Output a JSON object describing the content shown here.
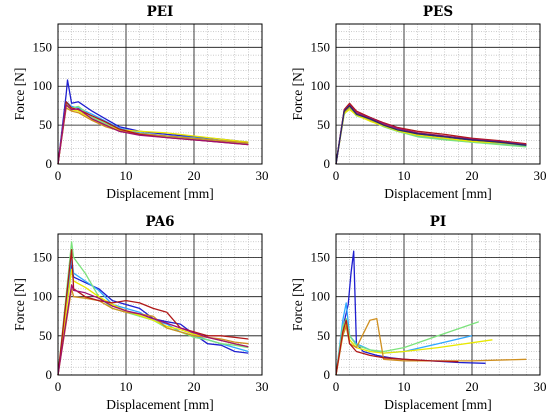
{
  "colors": [
    "#1f1fd0",
    "#2fa8ff",
    "#7ce37c",
    "#e8e800",
    "#d09020",
    "#b01818",
    "#a01070",
    "#2a2a6a"
  ],
  "chart_data": [
    {
      "type": "line",
      "title": "PEI",
      "xlabel": "Displacement [mm]",
      "ylabel": "Force [N]",
      "xlim": [
        0,
        30
      ],
      "ylim": [
        0,
        180
      ],
      "xticks": [
        "0",
        "10",
        "20",
        "30"
      ],
      "yticks": [
        "0",
        "50",
        "100",
        "150"
      ],
      "grid": true,
      "series": [
        {
          "x": [
            0,
            1.2,
            1.4,
            2,
            3,
            5,
            7,
            9,
            12,
            16,
            20,
            24,
            28
          ],
          "y": [
            0,
            90,
            108,
            78,
            80,
            68,
            58,
            48,
            42,
            38,
            35,
            32,
            28
          ]
        },
        {
          "x": [
            0,
            1.2,
            2,
            3,
            5,
            7,
            9,
            12,
            16,
            20,
            24,
            28
          ],
          "y": [
            0,
            80,
            74,
            72,
            64,
            55,
            46,
            40,
            36,
            34,
            30,
            27
          ]
        },
        {
          "x": [
            0,
            1.2,
            2,
            3,
            5,
            7,
            9,
            12,
            16,
            20,
            24,
            28
          ],
          "y": [
            0,
            78,
            72,
            74,
            60,
            52,
            44,
            38,
            35,
            32,
            29,
            26
          ]
        },
        {
          "x": [
            0,
            1.2,
            2,
            3,
            5,
            7,
            9,
            12,
            16,
            20,
            24,
            28
          ],
          "y": [
            0,
            75,
            70,
            68,
            58,
            50,
            44,
            42,
            40,
            36,
            32,
            28
          ]
        },
        {
          "x": [
            0,
            1.2,
            2,
            3,
            5,
            7,
            9,
            12,
            16,
            20,
            24,
            28
          ],
          "y": [
            0,
            72,
            68,
            66,
            56,
            48,
            43,
            39,
            36,
            33,
            30,
            27
          ]
        },
        {
          "x": [
            0,
            1.2,
            2,
            3,
            5,
            7,
            9,
            12,
            16,
            20,
            24,
            28
          ],
          "y": [
            0,
            80,
            72,
            70,
            62,
            54,
            45,
            38,
            34,
            31,
            28,
            25
          ]
        },
        {
          "x": [
            0,
            1.2,
            2,
            3,
            5,
            7,
            9,
            12,
            16,
            20,
            24,
            28
          ],
          "y": [
            0,
            76,
            70,
            71,
            58,
            50,
            42,
            37,
            34,
            31,
            28,
            25
          ]
        }
      ]
    },
    {
      "type": "line",
      "title": "PES",
      "xlabel": "Displacement [mm]",
      "ylabel": "Force [N]",
      "xlim": [
        0,
        30
      ],
      "ylim": [
        0,
        180
      ],
      "xticks": [
        "0",
        "10",
        "20",
        "30"
      ],
      "yticks": [
        "0",
        "50",
        "100",
        "150"
      ],
      "grid": true,
      "series": [
        {
          "x": [
            0,
            1.2,
            2,
            3,
            5,
            7,
            9,
            12,
            16,
            20,
            24,
            28
          ],
          "y": [
            0,
            66,
            74,
            64,
            58,
            50,
            44,
            38,
            33,
            30,
            28,
            24
          ]
        },
        {
          "x": [
            0,
            1.2,
            2,
            3,
            5,
            7,
            9,
            12,
            16,
            20,
            24,
            28
          ],
          "y": [
            0,
            68,
            76,
            66,
            60,
            52,
            45,
            36,
            32,
            28,
            26,
            23
          ]
        },
        {
          "x": [
            0,
            1.2,
            2,
            3,
            5,
            7,
            9,
            12,
            16,
            20,
            24,
            28
          ],
          "y": [
            0,
            64,
            72,
            62,
            56,
            48,
            42,
            35,
            31,
            28,
            25,
            22
          ]
        },
        {
          "x": [
            0,
            1.2,
            2,
            3,
            5,
            7,
            9,
            12,
            16,
            20,
            24,
            28
          ],
          "y": [
            0,
            65,
            70,
            63,
            55,
            49,
            43,
            37,
            33,
            29,
            27,
            24
          ]
        },
        {
          "x": [
            0,
            1.2,
            2,
            3,
            5,
            7,
            9,
            12,
            16,
            20,
            24,
            28
          ],
          "y": [
            0,
            67,
            73,
            65,
            57,
            51,
            46,
            40,
            36,
            31,
            28,
            25
          ]
        },
        {
          "x": [
            0,
            1.2,
            2,
            3,
            5,
            7,
            9,
            12,
            16,
            20,
            24,
            28
          ],
          "y": [
            0,
            70,
            78,
            68,
            60,
            53,
            47,
            42,
            38,
            33,
            30,
            26
          ]
        },
        {
          "x": [
            0,
            1.2,
            2,
            3,
            5,
            7,
            9,
            12,
            16,
            20,
            24,
            28
          ],
          "y": [
            0,
            69,
            76,
            66,
            59,
            52,
            46,
            40,
            36,
            32,
            29,
            25
          ]
        },
        {
          "x": [
            0,
            1.2,
            2,
            3,
            5,
            7,
            9,
            12,
            16,
            20,
            24,
            28
          ],
          "y": [
            0,
            68,
            75,
            64,
            58,
            50,
            44,
            39,
            35,
            31,
            28,
            24
          ]
        }
      ]
    },
    {
      "type": "line",
      "title": "PA6",
      "xlabel": "Displacement [mm]",
      "ylabel": "Force [N]",
      "xlim": [
        0,
        30
      ],
      "ylim": [
        0,
        180
      ],
      "xticks": [
        "0",
        "10",
        "20",
        "30"
      ],
      "yticks": [
        "0",
        "50",
        "100",
        "150"
      ],
      "grid": true,
      "series": [
        {
          "x": [
            0,
            2,
            2.3,
            4,
            6,
            8,
            10,
            12,
            14,
            16,
            18,
            20,
            22,
            24,
            26,
            28
          ],
          "y": [
            0,
            140,
            125,
            118,
            110,
            95,
            90,
            85,
            72,
            68,
            65,
            52,
            40,
            38,
            30,
            28
          ]
        },
        {
          "x": [
            0,
            2,
            2.3,
            4,
            6,
            8,
            10,
            12,
            14,
            16,
            18,
            20,
            22,
            24,
            26,
            28
          ],
          "y": [
            0,
            150,
            130,
            120,
            108,
            90,
            85,
            80,
            70,
            65,
            55,
            50,
            45,
            40,
            35,
            30
          ]
        },
        {
          "x": [
            0,
            2,
            2.3,
            4,
            6,
            8,
            10,
            12,
            14,
            16,
            18,
            20,
            22,
            24,
            26,
            28
          ],
          "y": [
            0,
            170,
            150,
            130,
            100,
            85,
            80,
            75,
            70,
            60,
            55,
            48,
            45,
            40,
            38,
            35
          ]
        },
        {
          "x": [
            0,
            2,
            2.3,
            4,
            6,
            8,
            10,
            12,
            14,
            16,
            18,
            20,
            22,
            24,
            26,
            28
          ],
          "y": [
            0,
            135,
            120,
            112,
            100,
            90,
            82,
            76,
            70,
            62,
            58,
            52,
            48,
            44,
            40,
            36
          ]
        },
        {
          "x": [
            0,
            2,
            2.3,
            4,
            6,
            8,
            10,
            12,
            14,
            16,
            18,
            20,
            22,
            24,
            26,
            28
          ],
          "y": [
            0,
            110,
            100,
            98,
            95,
            85,
            80,
            78,
            75,
            60,
            55,
            50,
            48,
            46,
            42,
            40
          ]
        },
        {
          "x": [
            0,
            2,
            2.3,
            4,
            6,
            8,
            10,
            12,
            14,
            16,
            18,
            20,
            22,
            24,
            26,
            28
          ],
          "y": [
            0,
            160,
            110,
            100,
            95,
            92,
            95,
            92,
            85,
            80,
            60,
            55,
            50,
            50,
            48,
            46
          ]
        },
        {
          "x": [
            0,
            2,
            2.3,
            4,
            6,
            8,
            10,
            12,
            14,
            16,
            18,
            20,
            22,
            24,
            26,
            28
          ],
          "y": [
            0,
            115,
            108,
            105,
            98,
            88,
            82,
            78,
            72,
            66,
            60,
            54,
            48,
            44,
            40,
            36
          ]
        }
      ]
    },
    {
      "type": "line",
      "title": "PI",
      "xlabel": "Displacement [mm]",
      "ylabel": "Force [N]",
      "xlim": [
        0,
        30
      ],
      "ylim": [
        0,
        180
      ],
      "xticks": [
        "0",
        "10",
        "20",
        "30"
      ],
      "yticks": [
        "0",
        "50",
        "100",
        "150"
      ],
      "grid": true,
      "series": [
        {
          "x": [
            0,
            1,
            1.8,
            2.2,
            2.6,
            3,
            4,
            6,
            8,
            10,
            14,
            18,
            22
          ],
          "y": [
            0,
            60,
            90,
            130,
            158,
            40,
            30,
            25,
            22,
            20,
            18,
            16,
            15
          ]
        },
        {
          "x": [
            0,
            1,
            1.5,
            2,
            3,
            5,
            7,
            10,
            15,
            20
          ],
          "y": [
            0,
            70,
            92,
            50,
            40,
            32,
            28,
            30,
            40,
            50
          ]
        },
        {
          "x": [
            0,
            1,
            1.5,
            2,
            3,
            5,
            7,
            10,
            15,
            21
          ],
          "y": [
            0,
            62,
            72,
            50,
            38,
            32,
            30,
            35,
            50,
            68
          ]
        },
        {
          "x": [
            0,
            1,
            1.5,
            2,
            3,
            5,
            7,
            10,
            15,
            23
          ],
          "y": [
            0,
            55,
            65,
            45,
            35,
            30,
            28,
            30,
            35,
            45
          ]
        },
        {
          "x": [
            0,
            1,
            1.5,
            2,
            3,
            5,
            6,
            7,
            10,
            15,
            20,
            28
          ],
          "y": [
            0,
            50,
            62,
            40,
            35,
            70,
            72,
            20,
            18,
            18,
            18,
            20
          ]
        },
        {
          "x": [
            0,
            1,
            1.5,
            2,
            3,
            5,
            7,
            10,
            14,
            18
          ],
          "y": [
            0,
            55,
            70,
            40,
            30,
            25,
            22,
            20,
            18,
            17
          ]
        }
      ]
    }
  ]
}
